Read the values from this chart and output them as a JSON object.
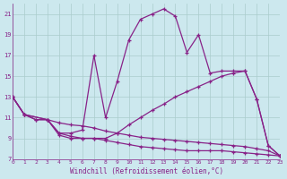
{
  "xlabel": "Windchill (Refroidissement éolien,°C)",
  "bg_color": "#cce8ee",
  "grid_color": "#aacccc",
  "line_color": "#882288",
  "xmin": 0,
  "xmax": 23,
  "ymin": 7,
  "ymax": 22,
  "yticks": [
    7,
    9,
    11,
    13,
    15,
    17,
    19,
    21
  ],
  "xticks": [
    0,
    1,
    2,
    3,
    4,
    5,
    6,
    7,
    8,
    9,
    10,
    11,
    12,
    13,
    14,
    15,
    16,
    17,
    18,
    19,
    20,
    21,
    22,
    23
  ],
  "line1_x": [
    0,
    1,
    3,
    4,
    5,
    6,
    7,
    8,
    9,
    10,
    11,
    12,
    13,
    14,
    15,
    16,
    17,
    18,
    19,
    20,
    21,
    22,
    23
  ],
  "line1_y": [
    13,
    11.3,
    10.8,
    9.5,
    9.5,
    9.8,
    17.0,
    11.0,
    14.5,
    18.5,
    20.5,
    21.0,
    21.5,
    20.8,
    17.3,
    19.0,
    15.3,
    15.5,
    15.5,
    15.5,
    12.8,
    8.3,
    7.3
  ],
  "line2_x": [
    0,
    1,
    3,
    4,
    5,
    6,
    7,
    8,
    9,
    10,
    11,
    12,
    13,
    14,
    15,
    16,
    17,
    18,
    19,
    20,
    21,
    22,
    23
  ],
  "line2_y": [
    13,
    11.3,
    10.8,
    9.3,
    9.0,
    9.0,
    9.0,
    9.0,
    9.5,
    10.3,
    11.0,
    11.7,
    12.3,
    13.0,
    13.5,
    14.0,
    14.5,
    15.0,
    15.3,
    15.5,
    12.8,
    8.3,
    7.3
  ],
  "line3_x": [
    0,
    1,
    2,
    3,
    4,
    5,
    6,
    7,
    8,
    9,
    10,
    11,
    12,
    13,
    14,
    15,
    16,
    17,
    18,
    19,
    20,
    21,
    22,
    23
  ],
  "line3_y": [
    13,
    11.3,
    10.8,
    10.8,
    10.5,
    10.3,
    10.2,
    10.0,
    9.7,
    9.5,
    9.3,
    9.1,
    9.0,
    8.9,
    8.8,
    8.7,
    8.6,
    8.5,
    8.4,
    8.3,
    8.2,
    8.0,
    7.8,
    7.3
  ],
  "line4_x": [
    0,
    1,
    2,
    3,
    4,
    5,
    6,
    7,
    8,
    9,
    10,
    11,
    12,
    13,
    14,
    15,
    16,
    17,
    18,
    19,
    20,
    21,
    22,
    23
  ],
  "line4_y": [
    13,
    11.3,
    10.8,
    10.8,
    9.5,
    9.2,
    9.0,
    9.0,
    8.8,
    8.6,
    8.4,
    8.2,
    8.1,
    8.0,
    7.9,
    7.8,
    7.8,
    7.8,
    7.8,
    7.7,
    7.6,
    7.5,
    7.4,
    7.3
  ]
}
